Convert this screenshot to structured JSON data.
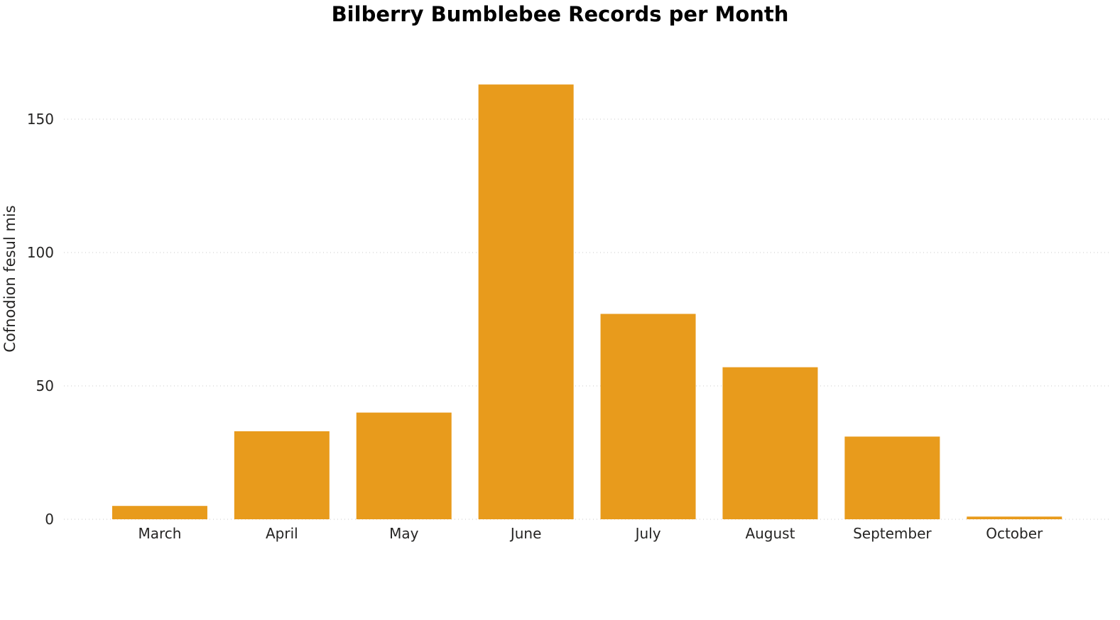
{
  "chart_data": {
    "type": "bar",
    "title": "Bilberry Bumblebee Records per Month",
    "ylabel": "Cofnodion fesul mis",
    "xlabel": "",
    "categories": [
      "March",
      "April",
      "May",
      "June",
      "July",
      "August",
      "September",
      "October"
    ],
    "values": [
      5,
      33,
      40,
      163,
      77,
      57,
      31,
      1
    ],
    "ylim": [
      0,
      175
    ],
    "yticks": [
      0,
      50,
      100,
      150
    ],
    "ytick_labels": [
      "0",
      "50",
      "100",
      "150"
    ],
    "grid": true,
    "legend": "none",
    "bar_color": "#E89B1C"
  }
}
